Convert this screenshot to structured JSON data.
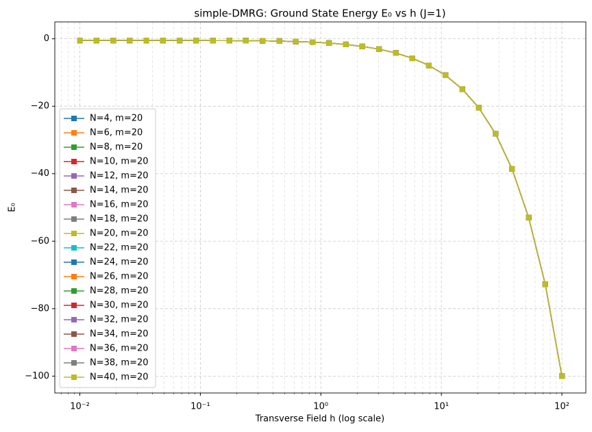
{
  "chart_data": {
    "type": "line",
    "title": "simple-DMRG: Ground State Energy E₀ vs h (J=1)",
    "xlabel": "Transverse Field h (log scale)",
    "ylabel": "E₀",
    "xscale": "log",
    "grid": true,
    "minor_grid": true,
    "legend": "lower left",
    "marker": "square",
    "x": [
      0.01,
      0.0137,
      0.0189,
      0.0259,
      0.0356,
      0.0489,
      0.0672,
      0.0924,
      0.127,
      0.174,
      0.239,
      0.329,
      0.452,
      0.621,
      0.853,
      1.17,
      1.61,
      2.21,
      3.04,
      4.18,
      5.74,
      7.88,
      10.8,
      14.9,
      20.4,
      28.1,
      38.6,
      53.0,
      72.8,
      100
    ],
    "xlim": [
      0.0062,
      158
    ],
    "xticks": [
      {
        "value": 0.01,
        "label": "10⁻²"
      },
      {
        "value": 0.1,
        "label": "10⁻¹"
      },
      {
        "value": 1,
        "label": "10⁰"
      },
      {
        "value": 10,
        "label": "10¹"
      },
      {
        "value": 100,
        "label": "10²"
      }
    ],
    "ylim": [
      -105,
      5
    ],
    "yticks": [
      {
        "value": -100,
        "label": "−100"
      },
      {
        "value": -80,
        "label": "−80"
      },
      {
        "value": -60,
        "label": "−60"
      },
      {
        "value": -40,
        "label": "−40"
      },
      {
        "value": -20,
        "label": "−20"
      },
      0
    ],
    "series": [
      {
        "name": "N=4, m=20",
        "color": "#1f77b4",
        "values": [
          -0.5,
          -0.5,
          -0.5,
          -0.5,
          -0.5,
          -0.5,
          -0.5,
          -0.51,
          -0.52,
          -0.53,
          -0.55,
          -0.6,
          -0.67,
          -0.8,
          -0.99,
          -1.27,
          -1.69,
          -2.27,
          -3.08,
          -4.21,
          -5.76,
          -7.9,
          -10.81,
          -14.91,
          -20.41,
          -28.1,
          -38.6,
          -53,
          -72.8,
          -100
        ]
      },
      {
        "name": "N=6, m=20",
        "color": "#ff7f0e",
        "values": [
          -0.5,
          -0.5,
          -0.5,
          -0.5,
          -0.5,
          -0.5,
          -0.5,
          -0.51,
          -0.52,
          -0.53,
          -0.55,
          -0.6,
          -0.67,
          -0.8,
          -0.99,
          -1.27,
          -1.69,
          -2.27,
          -3.08,
          -4.21,
          -5.76,
          -7.9,
          -10.81,
          -14.91,
          -20.41,
          -28.1,
          -38.6,
          -53,
          -72.8,
          -100
        ]
      },
      {
        "name": "N=8, m=20",
        "color": "#2ca02c",
        "values": [
          -0.5,
          -0.5,
          -0.5,
          -0.5,
          -0.5,
          -0.5,
          -0.5,
          -0.51,
          -0.52,
          -0.53,
          -0.55,
          -0.6,
          -0.67,
          -0.8,
          -0.99,
          -1.27,
          -1.69,
          -2.27,
          -3.08,
          -4.21,
          -5.76,
          -7.9,
          -10.81,
          -14.91,
          -20.41,
          -28.1,
          -38.6,
          -53,
          -72.8,
          -100
        ]
      },
      {
        "name": "N=10, m=20",
        "color": "#d62728",
        "values": [
          -0.5,
          -0.5,
          -0.5,
          -0.5,
          -0.5,
          -0.5,
          -0.5,
          -0.51,
          -0.52,
          -0.53,
          -0.55,
          -0.6,
          -0.67,
          -0.8,
          -0.99,
          -1.27,
          -1.69,
          -2.27,
          -3.08,
          -4.21,
          -5.76,
          -7.9,
          -10.81,
          -14.91,
          -20.41,
          -28.1,
          -38.6,
          -53,
          -72.8,
          -100
        ]
      },
      {
        "name": "N=12, m=20",
        "color": "#9467bd",
        "values": [
          -0.5,
          -0.5,
          -0.5,
          -0.5,
          -0.5,
          -0.5,
          -0.5,
          -0.51,
          -0.52,
          -0.53,
          -0.55,
          -0.6,
          -0.67,
          -0.8,
          -0.99,
          -1.27,
          -1.69,
          -2.27,
          -3.08,
          -4.21,
          -5.76,
          -7.9,
          -10.81,
          -14.91,
          -20.41,
          -28.1,
          -38.6,
          -53,
          -72.8,
          -100
        ]
      },
      {
        "name": "N=14, m=20",
        "color": "#8c564b",
        "values": [
          -0.5,
          -0.5,
          -0.5,
          -0.5,
          -0.5,
          -0.5,
          -0.5,
          -0.51,
          -0.52,
          -0.53,
          -0.55,
          -0.6,
          -0.67,
          -0.8,
          -0.99,
          -1.27,
          -1.69,
          -2.27,
          -3.08,
          -4.21,
          -5.76,
          -7.9,
          -10.81,
          -14.91,
          -20.41,
          -28.1,
          -38.6,
          -53,
          -72.8,
          -100
        ]
      },
      {
        "name": "N=16, m=20",
        "color": "#e377c2",
        "values": [
          -0.5,
          -0.5,
          -0.5,
          -0.5,
          -0.5,
          -0.5,
          -0.5,
          -0.51,
          -0.52,
          -0.53,
          -0.55,
          -0.6,
          -0.67,
          -0.8,
          -0.99,
          -1.27,
          -1.69,
          -2.27,
          -3.08,
          -4.21,
          -5.76,
          -7.9,
          -10.81,
          -14.91,
          -20.41,
          -28.1,
          -38.6,
          -53,
          -72.8,
          -100
        ]
      },
      {
        "name": "N=18, m=20",
        "color": "#7f7f7f",
        "values": [
          -0.5,
          -0.5,
          -0.5,
          -0.5,
          -0.5,
          -0.5,
          -0.5,
          -0.51,
          -0.52,
          -0.53,
          -0.55,
          -0.6,
          -0.67,
          -0.8,
          -0.99,
          -1.27,
          -1.69,
          -2.27,
          -3.08,
          -4.21,
          -5.76,
          -7.9,
          -10.81,
          -14.91,
          -20.41,
          -28.1,
          -38.6,
          -53,
          -72.8,
          -100
        ]
      },
      {
        "name": "N=20, m=20",
        "color": "#bcbd22",
        "values": [
          -0.5,
          -0.5,
          -0.5,
          -0.5,
          -0.5,
          -0.5,
          -0.5,
          -0.51,
          -0.52,
          -0.53,
          -0.55,
          -0.6,
          -0.67,
          -0.8,
          -0.99,
          -1.27,
          -1.69,
          -2.27,
          -3.08,
          -4.21,
          -5.76,
          -7.9,
          -10.81,
          -14.91,
          -20.41,
          -28.1,
          -38.6,
          -53,
          -72.8,
          -100
        ]
      },
      {
        "name": "N=22, m=20",
        "color": "#17becf",
        "values": [
          -0.5,
          -0.5,
          -0.5,
          -0.5,
          -0.5,
          -0.5,
          -0.5,
          -0.51,
          -0.52,
          -0.53,
          -0.55,
          -0.6,
          -0.67,
          -0.8,
          -0.99,
          -1.27,
          -1.69,
          -2.27,
          -3.08,
          -4.21,
          -5.76,
          -7.9,
          -10.81,
          -14.91,
          -20.41,
          -28.1,
          -38.6,
          -53,
          -72.8,
          -100
        ]
      },
      {
        "name": "N=24, m=20",
        "color": "#1f77b4",
        "values": [
          -0.5,
          -0.5,
          -0.5,
          -0.5,
          -0.5,
          -0.5,
          -0.5,
          -0.51,
          -0.52,
          -0.53,
          -0.55,
          -0.6,
          -0.67,
          -0.8,
          -0.99,
          -1.27,
          -1.69,
          -2.27,
          -3.08,
          -4.21,
          -5.76,
          -7.9,
          -10.81,
          -14.91,
          -20.41,
          -28.1,
          -38.6,
          -53,
          -72.8,
          -100
        ]
      },
      {
        "name": "N=26, m=20",
        "color": "#ff7f0e",
        "values": [
          -0.5,
          -0.5,
          -0.5,
          -0.5,
          -0.5,
          -0.5,
          -0.5,
          -0.51,
          -0.52,
          -0.53,
          -0.55,
          -0.6,
          -0.67,
          -0.8,
          -0.99,
          -1.27,
          -1.69,
          -2.27,
          -3.08,
          -4.21,
          -5.76,
          -7.9,
          -10.81,
          -14.91,
          -20.41,
          -28.1,
          -38.6,
          -53,
          -72.8,
          -100
        ]
      },
      {
        "name": "N=28, m=20",
        "color": "#2ca02c",
        "values": [
          -0.5,
          -0.5,
          -0.5,
          -0.5,
          -0.5,
          -0.5,
          -0.5,
          -0.51,
          -0.52,
          -0.53,
          -0.55,
          -0.6,
          -0.67,
          -0.8,
          -0.99,
          -1.27,
          -1.69,
          -2.27,
          -3.08,
          -4.21,
          -5.76,
          -7.9,
          -10.81,
          -14.91,
          -20.41,
          -28.1,
          -38.6,
          -53,
          -72.8,
          -100
        ]
      },
      {
        "name": "N=30, m=20",
        "color": "#d62728",
        "values": [
          -0.5,
          -0.5,
          -0.5,
          -0.5,
          -0.5,
          -0.5,
          -0.5,
          -0.51,
          -0.52,
          -0.53,
          -0.55,
          -0.6,
          -0.67,
          -0.8,
          -0.99,
          -1.27,
          -1.69,
          -2.27,
          -3.08,
          -4.21,
          -5.76,
          -7.9,
          -10.81,
          -14.91,
          -20.41,
          -28.1,
          -38.6,
          -53,
          -72.8,
          -100
        ]
      },
      {
        "name": "N=32, m=20",
        "color": "#9467bd",
        "values": [
          -0.5,
          -0.5,
          -0.5,
          -0.5,
          -0.5,
          -0.5,
          -0.5,
          -0.51,
          -0.52,
          -0.53,
          -0.55,
          -0.6,
          -0.67,
          -0.8,
          -0.99,
          -1.27,
          -1.69,
          -2.27,
          -3.08,
          -4.21,
          -5.76,
          -7.9,
          -10.81,
          -14.91,
          -20.41,
          -28.1,
          -38.6,
          -53,
          -72.8,
          -100
        ]
      },
      {
        "name": "N=34, m=20",
        "color": "#8c564b",
        "values": [
          -0.5,
          -0.5,
          -0.5,
          -0.5,
          -0.5,
          -0.5,
          -0.5,
          -0.51,
          -0.52,
          -0.53,
          -0.55,
          -0.6,
          -0.67,
          -0.8,
          -0.99,
          -1.27,
          -1.69,
          -2.27,
          -3.08,
          -4.21,
          -5.76,
          -7.9,
          -10.81,
          -14.91,
          -20.41,
          -28.1,
          -38.6,
          -53,
          -72.8,
          -100
        ]
      },
      {
        "name": "N=36, m=20",
        "color": "#e377c2",
        "values": [
          -0.5,
          -0.5,
          -0.5,
          -0.5,
          -0.5,
          -0.5,
          -0.5,
          -0.51,
          -0.52,
          -0.53,
          -0.55,
          -0.6,
          -0.67,
          -0.8,
          -0.99,
          -1.27,
          -1.69,
          -2.27,
          -3.08,
          -4.21,
          -5.76,
          -7.9,
          -10.81,
          -14.91,
          -20.41,
          -28.1,
          -38.6,
          -53,
          -72.8,
          -100
        ]
      },
      {
        "name": "N=38, m=20",
        "color": "#7f7f7f",
        "values": [
          -0.5,
          -0.5,
          -0.5,
          -0.5,
          -0.5,
          -0.5,
          -0.5,
          -0.51,
          -0.52,
          -0.53,
          -0.55,
          -0.6,
          -0.67,
          -0.8,
          -0.99,
          -1.27,
          -1.69,
          -2.27,
          -3.08,
          -4.21,
          -5.76,
          -7.9,
          -10.81,
          -14.91,
          -20.41,
          -28.1,
          -38.6,
          -53,
          -72.8,
          -100
        ]
      },
      {
        "name": "N=40, m=20",
        "color": "#bcbd22",
        "values": [
          -0.5,
          -0.5,
          -0.5,
          -0.5,
          -0.5,
          -0.5,
          -0.5,
          -0.51,
          -0.52,
          -0.53,
          -0.55,
          -0.6,
          -0.67,
          -0.8,
          -0.99,
          -1.27,
          -1.69,
          -2.27,
          -3.08,
          -4.21,
          -5.76,
          -7.9,
          -10.81,
          -14.91,
          -20.41,
          -28.1,
          -38.6,
          -53,
          -72.8,
          -100
        ]
      }
    ]
  }
}
